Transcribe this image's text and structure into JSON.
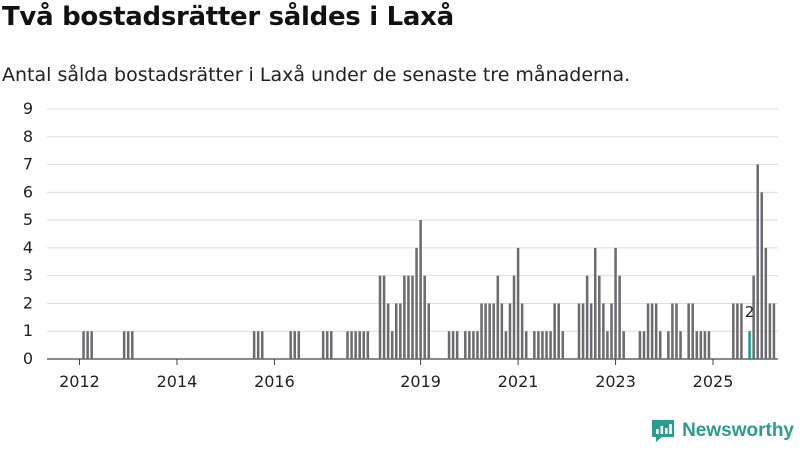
{
  "header": {
    "title": "Två bostadsrätter såldes i Laxå",
    "subtitle": "Antal sålda bostadsrätter i Laxå under de senaste tre månaderna."
  },
  "brand": {
    "name": "Newsworthy"
  },
  "colors": {
    "bar": "#6b6b70",
    "highlight": "#1a9a8c",
    "grid": "#dddddd",
    "brand": "#2a9d8f"
  },
  "chart_data": {
    "type": "bar",
    "title": "Två bostadsrätter såldes i Laxå",
    "subtitle": "Antal sålda bostadsrätter i Laxå under de senaste tre månaderna.",
    "xlabel": "",
    "ylabel": "",
    "ylim": [
      0,
      9
    ],
    "yticks": [
      "0",
      "1",
      "2",
      "3",
      "4",
      "5",
      "6",
      "7",
      "8",
      "9"
    ],
    "xticks": [
      {
        "label": "2012",
        "index": 7
      },
      {
        "label": "2014",
        "index": 31
      },
      {
        "label": "2016",
        "index": 55
      },
      {
        "label": "2019",
        "index": 91
      },
      {
        "label": "2021",
        "index": 115
      },
      {
        "label": "2023",
        "index": 139
      },
      {
        "label": "2025",
        "index": 163
      }
    ],
    "grid": true,
    "annotation": {
      "label": "2",
      "index": 172
    },
    "highlight_index": 172,
    "values": [
      0,
      0,
      0,
      0,
      0,
      0,
      0,
      0,
      1,
      1,
      1,
      0,
      0,
      0,
      0,
      0,
      0,
      0,
      1,
      1,
      1,
      0,
      0,
      0,
      0,
      0,
      0,
      0,
      0,
      0,
      0,
      0,
      0,
      0,
      0,
      0,
      0,
      0,
      0,
      0,
      0,
      0,
      0,
      0,
      0,
      0,
      0,
      0,
      0,
      0,
      1,
      1,
      1,
      0,
      0,
      0,
      0,
      0,
      0,
      1,
      1,
      1,
      0,
      0,
      0,
      0,
      0,
      1,
      1,
      1,
      0,
      0,
      0,
      1,
      1,
      1,
      1,
      1,
      1,
      0,
      0,
      3,
      3,
      2,
      1,
      2,
      2,
      3,
      3,
      3,
      4,
      5,
      3,
      2,
      0,
      0,
      0,
      0,
      1,
      1,
      1,
      0,
      1,
      1,
      1,
      1,
      2,
      2,
      2,
      2,
      3,
      2,
      1,
      2,
      3,
      4,
      2,
      1,
      0,
      1,
      1,
      1,
      1,
      1,
      2,
      2,
      1,
      0,
      0,
      0,
      2,
      2,
      3,
      2,
      4,
      3,
      2,
      1,
      2,
      4,
      3,
      1,
      0,
      0,
      0,
      1,
      1,
      2,
      2,
      2,
      1,
      0,
      1,
      2,
      2,
      1,
      0,
      2,
      2,
      1,
      1,
      1,
      1,
      0,
      0,
      0,
      0,
      0,
      2,
      2,
      2,
      0,
      1,
      3,
      7,
      6,
      4,
      2,
      2
    ]
  }
}
